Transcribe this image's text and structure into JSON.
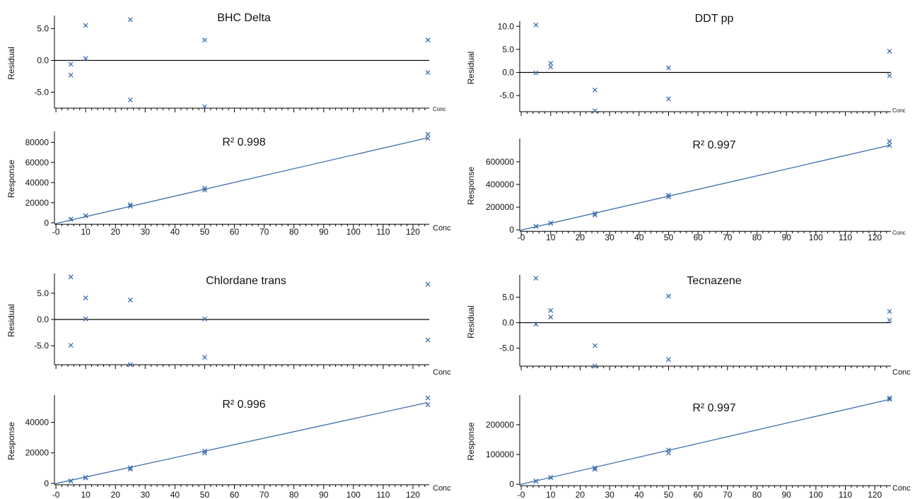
{
  "colors": {
    "marker": "#3d6fad",
    "fit_line": "#3d6fad",
    "zero_line": "#000000",
    "axis": "#000000"
  },
  "chart_data": [
    {
      "type": "scatter",
      "role": "residual",
      "panel": "BHC Delta",
      "title": "BHC Delta",
      "ylabel": "Residual",
      "xlabel": "Conc",
      "xlim": [
        -0.5,
        125
      ],
      "ylim": [
        -7.5,
        6.6
      ],
      "yticks": [
        "5.0",
        "0.0",
        "-5.0"
      ],
      "ytick_values": [
        5,
        0,
        -5
      ],
      "zero_line": true,
      "points": {
        "x": [
          5,
          5,
          10,
          10,
          25,
          25,
          50,
          50,
          125,
          125
        ],
        "y": [
          -0.6,
          -2.3,
          5.5,
          0.3,
          6.4,
          -6.2,
          3.2,
          -7.3,
          3.2,
          -1.9
        ]
      }
    },
    {
      "type": "scatter",
      "role": "calibration",
      "panel": "BHC Delta",
      "title": "R² 0.998",
      "ylabel": "Response",
      "xlabel": "Conc",
      "xlim": [
        -0.5,
        125
      ],
      "ylim": [
        -500,
        88000
      ],
      "xticks": [
        "-0",
        "10",
        "20",
        "30",
        "40",
        "50",
        "60",
        "70",
        "80",
        "90",
        "100",
        "110",
        "120"
      ],
      "yticks": [
        "80000",
        "60000",
        "40000",
        "20000",
        "0"
      ],
      "ytick_values": [
        80000,
        60000,
        40000,
        20000,
        0
      ],
      "fit": {
        "x": [
          -0.5,
          125
        ],
        "y": [
          -1000,
          84500
        ]
      },
      "points": {
        "x": [
          5,
          5,
          10,
          10,
          25,
          25,
          50,
          50,
          125,
          125
        ],
        "y": [
          3500,
          3700,
          6900,
          7200,
          16500,
          18000,
          32500,
          34500,
          84000,
          88000
        ]
      }
    },
    {
      "type": "scatter",
      "role": "residual",
      "panel": "DDT pp",
      "title": "DDT pp",
      "ylabel": "Residual",
      "xlabel": "Conc",
      "xlim": [
        -0.5,
        125
      ],
      "ylim": [
        -8.5,
        10.5
      ],
      "yticks": [
        "10.0",
        "5.0",
        "0.0",
        "-5.0"
      ],
      "ytick_values": [
        10,
        5,
        0,
        -5
      ],
      "zero_line": true,
      "points": {
        "x": [
          5,
          5,
          10,
          10,
          25,
          25,
          50,
          50,
          125,
          125
        ],
        "y": [
          10.3,
          -0.1,
          2.0,
          1.2,
          -3.8,
          -8.3,
          1.0,
          -5.7,
          4.6,
          -0.7
        ]
      }
    },
    {
      "type": "scatter",
      "role": "calibration",
      "panel": "DDT pp",
      "title": "R² 0.997",
      "ylabel": "Response",
      "xlabel": "Conc",
      "xlim": [
        -0.5,
        125
      ],
      "ylim": [
        -5000,
        780000
      ],
      "xticks": [
        "-0",
        "10",
        "20",
        "30",
        "40",
        "50",
        "60",
        "70",
        "80",
        "90",
        "100",
        "110",
        "120"
      ],
      "yticks": [
        "600000",
        "400000",
        "200000",
        "0"
      ],
      "ytick_values": [
        600000,
        400000,
        200000,
        0
      ],
      "fit": {
        "x": [
          -0.5,
          125
        ],
        "y": [
          -5000,
          745000
        ]
      },
      "points": {
        "x": [
          5,
          5,
          10,
          10,
          25,
          25,
          50,
          50,
          125,
          125
        ],
        "y": [
          30000,
          31000,
          58000,
          60000,
          130000,
          145000,
          290000,
          305000,
          745000,
          780000
        ]
      }
    },
    {
      "type": "scatter",
      "role": "residual",
      "panel": "Chlordane trans",
      "title": "Chlordane trans",
      "ylabel": "Residual",
      "xlabel": "Conc",
      "xlim": [
        -0.5,
        125
      ],
      "ylim": [
        -8.6,
        8.2
      ],
      "yticks": [
        "5.0",
        "0.0",
        "-5.0"
      ],
      "ytick_values": [
        5,
        0,
        -5
      ],
      "zero_line": true,
      "points": {
        "x": [
          5,
          5,
          10,
          10,
          25,
          25,
          50,
          50,
          125,
          125
        ],
        "y": [
          8.1,
          -4.9,
          4.1,
          0.1,
          3.7,
          -8.6,
          0.1,
          -7.2,
          6.7,
          -3.9
        ]
      }
    },
    {
      "type": "scatter",
      "role": "calibration",
      "panel": "Chlordane trans",
      "title": "R² 0.996",
      "ylabel": "Response",
      "xlabel": "Conc",
      "xlim": [
        -0.5,
        125
      ],
      "ylim": [
        -500,
        56000
      ],
      "xticks": [
        "-0",
        "10",
        "20",
        "30",
        "40",
        "50",
        "60",
        "70",
        "80",
        "90",
        "100",
        "110",
        "120"
      ],
      "yticks": [
        "40000",
        "20000",
        "0"
      ],
      "ytick_values": [
        40000,
        20000,
        0
      ],
      "fit": {
        "x": [
          -0.5,
          125
        ],
        "y": [
          -300,
          53000
        ]
      },
      "points": {
        "x": [
          5,
          5,
          10,
          10,
          25,
          25,
          50,
          50,
          125,
          125
        ],
        "y": [
          1500,
          1700,
          3600,
          3900,
          9300,
          10300,
          19800,
          21200,
          51500,
          56000
        ]
      }
    },
    {
      "type": "scatter",
      "role": "residual",
      "panel": "Tecnazene",
      "title": "Tecnazene",
      "ylabel": "Residual",
      "xlabel": "Conc",
      "xlim": [
        -0.5,
        125
      ],
      "ylim": [
        -8.5,
        8.8
      ],
      "yticks": [
        "5.0",
        "0.0",
        "-5.0"
      ],
      "ytick_values": [
        5,
        0,
        -5
      ],
      "zero_line": true,
      "points": {
        "x": [
          5,
          5,
          10,
          10,
          25,
          25,
          50,
          50,
          125,
          125
        ],
        "y": [
          8.7,
          -0.3,
          2.4,
          1.1,
          -4.5,
          -8.5,
          5.2,
          -7.2,
          2.2,
          0.5
        ]
      }
    },
    {
      "type": "scatter",
      "role": "calibration",
      "panel": "Tecnazene",
      "title": "R² 0.997",
      "ylabel": "Response",
      "xlabel": "Conc",
      "xlim": [
        -0.5,
        125
      ],
      "ylim": [
        -2000,
        290000
      ],
      "xticks": [
        "-0",
        "10",
        "20",
        "30",
        "40",
        "50",
        "60",
        "70",
        "80",
        "90",
        "100",
        "110",
        "120"
      ],
      "yticks": [
        "200000",
        "100000",
        "0"
      ],
      "ytick_values": [
        200000,
        100000,
        0
      ],
      "fit": {
        "x": [
          -0.5,
          125
        ],
        "y": [
          -1000,
          285000
        ]
      },
      "points": {
        "x": [
          5,
          5,
          10,
          10,
          25,
          25,
          50,
          50,
          125,
          125
        ],
        "y": [
          10000,
          11000,
          22000,
          23000,
          50000,
          55000,
          105000,
          115000,
          285000,
          290000
        ]
      }
    }
  ]
}
